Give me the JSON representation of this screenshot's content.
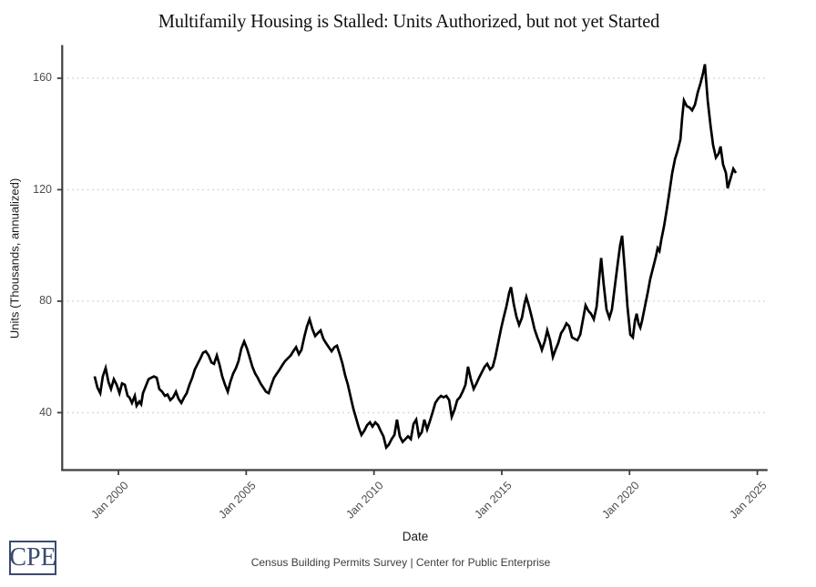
{
  "title": "Multifamily Housing is Stalled: Units Authorized, but not yet Started",
  "caption": "Census Building Permits Survey | Center for Public Enterprise",
  "logo": {
    "text": "CPE",
    "color": "#3b4a6e"
  },
  "colors": {
    "background": "#ffffff",
    "line": "#000000",
    "grid": "#cbcbcb",
    "axis": "#3f3f3f",
    "tick_label": "#4d4d4d",
    "axis_title": "#1a1a1a"
  },
  "chart_data": {
    "type": "line",
    "title": "Multifamily Housing is Stalled: Units Authorized, but not yet Started",
    "xlabel": "Date",
    "ylabel": "Units (Thousands, annualized)",
    "xlim": [
      1997.8,
      2025.4
    ],
    "ylim": [
      19.4,
      171.9
    ],
    "grid": "horizontal-dotted",
    "legend": "none",
    "x_ticks": [
      {
        "t": 2000,
        "label": "Jan 2000"
      },
      {
        "t": 2005,
        "label": "Jan 2005"
      },
      {
        "t": 2010,
        "label": "Jan 2010"
      },
      {
        "t": 2015,
        "label": "Jan 2015"
      },
      {
        "t": 2020,
        "label": "Jan 2020"
      },
      {
        "t": 2025,
        "label": "Jan 2025"
      }
    ],
    "y_ticks": [
      {
        "v": 40,
        "label": "40"
      },
      {
        "v": 80,
        "label": "80"
      },
      {
        "v": 120,
        "label": "120"
      },
      {
        "v": 160,
        "label": "160"
      }
    ],
    "series": [
      {
        "points": [
          [
            1999.07,
            53
          ],
          [
            1999.18,
            49
          ],
          [
            1999.29,
            47
          ],
          [
            1999.39,
            53
          ],
          [
            1999.5,
            56
          ],
          [
            1999.61,
            51
          ],
          [
            1999.71,
            48.5
          ],
          [
            1999.82,
            52
          ],
          [
            1999.93,
            50
          ],
          [
            2000.04,
            47
          ],
          [
            2000.14,
            50.5
          ],
          [
            2000.25,
            50
          ],
          [
            2000.36,
            46
          ],
          [
            2000.43,
            45.5
          ],
          [
            2000.53,
            43.5
          ],
          [
            2000.64,
            46
          ],
          [
            2000.71,
            42.5
          ],
          [
            2000.82,
            44
          ],
          [
            2000.89,
            43
          ],
          [
            2000.96,
            47
          ],
          [
            2001.07,
            49.5
          ],
          [
            2001.18,
            52
          ],
          [
            2001.28,
            52.5
          ],
          [
            2001.39,
            53
          ],
          [
            2001.5,
            52.5
          ],
          [
            2001.6,
            48.5
          ],
          [
            2001.71,
            47.5
          ],
          [
            2001.82,
            46
          ],
          [
            2001.92,
            46.5
          ],
          [
            2002.03,
            44.5
          ],
          [
            2002.14,
            45.5
          ],
          [
            2002.25,
            47.5
          ],
          [
            2002.35,
            45
          ],
          [
            2002.46,
            43.5
          ],
          [
            2002.57,
            45.5
          ],
          [
            2002.67,
            47
          ],
          [
            2002.78,
            50
          ],
          [
            2002.89,
            52.5
          ],
          [
            2002.99,
            55.5
          ],
          [
            2003.1,
            57.5
          ],
          [
            2003.21,
            59.5
          ],
          [
            2003.31,
            61.5
          ],
          [
            2003.42,
            62
          ],
          [
            2003.53,
            60.5
          ],
          [
            2003.64,
            58
          ],
          [
            2003.74,
            57.5
          ],
          [
            2003.85,
            60.5
          ],
          [
            2003.96,
            57
          ],
          [
            2004.06,
            53
          ],
          [
            2004.17,
            50
          ],
          [
            2004.28,
            47.5
          ],
          [
            2004.38,
            51
          ],
          [
            2004.49,
            54
          ],
          [
            2004.6,
            56
          ],
          [
            2004.7,
            58.5
          ],
          [
            2004.81,
            63
          ],
          [
            2004.92,
            65.5
          ],
          [
            2005.03,
            63
          ],
          [
            2005.13,
            60
          ],
          [
            2005.24,
            56.5
          ],
          [
            2005.35,
            54
          ],
          [
            2005.45,
            52.5
          ],
          [
            2005.56,
            50.5
          ],
          [
            2005.67,
            49
          ],
          [
            2005.77,
            47.5
          ],
          [
            2005.88,
            47
          ],
          [
            2005.99,
            50
          ],
          [
            2006.09,
            52.5
          ],
          [
            2006.2,
            54
          ],
          [
            2006.31,
            55.5
          ],
          [
            2006.41,
            57
          ],
          [
            2006.52,
            58.5
          ],
          [
            2006.63,
            59.5
          ],
          [
            2006.74,
            60.5
          ],
          [
            2006.84,
            62
          ],
          [
            2006.95,
            63.5
          ],
          [
            2007.06,
            61
          ],
          [
            2007.16,
            62.5
          ],
          [
            2007.27,
            67
          ],
          [
            2007.38,
            71
          ],
          [
            2007.48,
            73.5
          ],
          [
            2007.59,
            70
          ],
          [
            2007.7,
            67.5
          ],
          [
            2007.8,
            68.5
          ],
          [
            2007.91,
            69.5
          ],
          [
            2008.02,
            66.5
          ],
          [
            2008.12,
            65
          ],
          [
            2008.23,
            63.5
          ],
          [
            2008.34,
            62
          ],
          [
            2008.45,
            63.5
          ],
          [
            2008.55,
            64
          ],
          [
            2008.66,
            61
          ],
          [
            2008.77,
            57.5
          ],
          [
            2008.87,
            53.5
          ],
          [
            2008.98,
            50
          ],
          [
            2009.09,
            45.5
          ],
          [
            2009.19,
            41.5
          ],
          [
            2009.3,
            38
          ],
          [
            2009.41,
            34.5
          ],
          [
            2009.51,
            32
          ],
          [
            2009.62,
            33.5
          ],
          [
            2009.73,
            35.5
          ],
          [
            2009.84,
            36.5
          ],
          [
            2009.94,
            35
          ],
          [
            2010.05,
            36.5
          ],
          [
            2010.16,
            35.5
          ],
          [
            2010.26,
            33.5
          ],
          [
            2010.37,
            31.5
          ],
          [
            2010.48,
            27.5
          ],
          [
            2010.58,
            28.5
          ],
          [
            2010.69,
            30.5
          ],
          [
            2010.8,
            32
          ],
          [
            2010.9,
            37.5
          ],
          [
            2011.01,
            31.5
          ],
          [
            2011.12,
            29.5
          ],
          [
            2011.23,
            30.5
          ],
          [
            2011.33,
            31.5
          ],
          [
            2011.44,
            30.5
          ],
          [
            2011.55,
            36
          ],
          [
            2011.65,
            37.5
          ],
          [
            2011.76,
            31.5
          ],
          [
            2011.87,
            33
          ],
          [
            2011.97,
            37.5
          ],
          [
            2012.08,
            34
          ],
          [
            2012.19,
            37
          ],
          [
            2012.29,
            40
          ],
          [
            2012.4,
            43.5
          ],
          [
            2012.51,
            45
          ],
          [
            2012.62,
            46
          ],
          [
            2012.72,
            45.5
          ],
          [
            2012.83,
            46
          ],
          [
            2012.94,
            44.5
          ],
          [
            2013.04,
            38.5
          ],
          [
            2013.15,
            41
          ],
          [
            2013.26,
            44.5
          ],
          [
            2013.36,
            45.5
          ],
          [
            2013.47,
            47.5
          ],
          [
            2013.58,
            50
          ],
          [
            2013.68,
            56.5
          ],
          [
            2013.79,
            52
          ],
          [
            2013.9,
            48.5
          ],
          [
            2014.01,
            50.5
          ],
          [
            2014.11,
            52.5
          ],
          [
            2014.22,
            54.5
          ],
          [
            2014.33,
            56.5
          ],
          [
            2014.43,
            57.5
          ],
          [
            2014.54,
            55.5
          ],
          [
            2014.65,
            56.5
          ],
          [
            2014.75,
            60
          ],
          [
            2014.86,
            65
          ],
          [
            2014.97,
            70
          ],
          [
            2015.07,
            74
          ],
          [
            2015.18,
            78
          ],
          [
            2015.29,
            83
          ],
          [
            2015.36,
            85
          ],
          [
            2015.47,
            79
          ],
          [
            2015.57,
            74.5
          ],
          [
            2015.68,
            71.5
          ],
          [
            2015.79,
            74
          ],
          [
            2015.89,
            79
          ],
          [
            2015.96,
            81.5
          ],
          [
            2016.07,
            78
          ],
          [
            2016.18,
            74
          ],
          [
            2016.28,
            70
          ],
          [
            2016.39,
            67
          ],
          [
            2016.5,
            64.5
          ],
          [
            2016.57,
            62.5
          ],
          [
            2016.68,
            65.5
          ],
          [
            2016.78,
            69.5
          ],
          [
            2016.89,
            66
          ],
          [
            2017.0,
            60
          ],
          [
            2017.1,
            62.5
          ],
          [
            2017.21,
            65
          ],
          [
            2017.32,
            68.5
          ],
          [
            2017.43,
            70
          ],
          [
            2017.53,
            72
          ],
          [
            2017.64,
            71
          ],
          [
            2017.75,
            67
          ],
          [
            2017.85,
            66.5
          ],
          [
            2017.96,
            66
          ],
          [
            2018.07,
            68
          ],
          [
            2018.17,
            73
          ],
          [
            2018.28,
            78.5
          ],
          [
            2018.39,
            76.5
          ],
          [
            2018.49,
            75.5
          ],
          [
            2018.6,
            73.5
          ],
          [
            2018.71,
            78
          ],
          [
            2018.81,
            88
          ],
          [
            2018.89,
            95.5
          ],
          [
            2018.99,
            86
          ],
          [
            2019.1,
            77
          ],
          [
            2019.21,
            74
          ],
          [
            2019.31,
            77
          ],
          [
            2019.42,
            85
          ],
          [
            2019.53,
            93
          ],
          [
            2019.63,
            100
          ],
          [
            2019.71,
            103.5
          ],
          [
            2019.81,
            92
          ],
          [
            2019.92,
            78
          ],
          [
            2020.03,
            68
          ],
          [
            2020.13,
            67
          ],
          [
            2020.21,
            73
          ],
          [
            2020.28,
            75.5
          ],
          [
            2020.35,
            72
          ],
          [
            2020.42,
            70.5
          ],
          [
            2020.49,
            73
          ],
          [
            2020.6,
            78
          ],
          [
            2020.71,
            83
          ],
          [
            2020.81,
            88
          ],
          [
            2020.92,
            92
          ],
          [
            2021.03,
            96
          ],
          [
            2021.1,
            99
          ],
          [
            2021.17,
            98
          ],
          [
            2021.24,
            102
          ],
          [
            2021.35,
            107
          ],
          [
            2021.46,
            113
          ],
          [
            2021.56,
            119
          ],
          [
            2021.67,
            126
          ],
          [
            2021.78,
            131
          ],
          [
            2021.88,
            134
          ],
          [
            2021.99,
            138
          ],
          [
            2022.06,
            146
          ],
          [
            2022.13,
            152
          ],
          [
            2022.24,
            150
          ],
          [
            2022.35,
            149.5
          ],
          [
            2022.45,
            148.5
          ],
          [
            2022.56,
            150.5
          ],
          [
            2022.67,
            155
          ],
          [
            2022.77,
            158
          ],
          [
            2022.88,
            162
          ],
          [
            2022.95,
            165
          ],
          [
            2023.06,
            152
          ],
          [
            2023.17,
            143
          ],
          [
            2023.27,
            136
          ],
          [
            2023.38,
            131.5
          ],
          [
            2023.49,
            133
          ],
          [
            2023.56,
            135.5
          ],
          [
            2023.66,
            129
          ],
          [
            2023.77,
            126
          ],
          [
            2023.84,
            120.5
          ],
          [
            2023.95,
            124
          ],
          [
            2024.06,
            127.5
          ],
          [
            2024.16,
            126
          ]
        ]
      }
    ]
  }
}
